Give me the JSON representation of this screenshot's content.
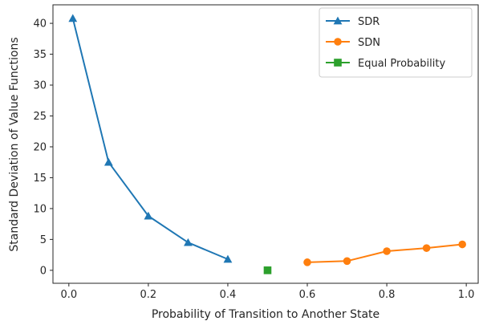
{
  "chart_data": {
    "type": "line",
    "xlabel": "Probability of Transition to Another State",
    "ylabel": "Standard Deviation of Value Functions",
    "xlim": [
      -0.04,
      1.03
    ],
    "ylim": [
      -2.1,
      43.0
    ],
    "xticks": [
      0.0,
      0.2,
      0.4,
      0.6,
      0.8,
      1.0
    ],
    "xtick_labels": [
      "0.0",
      "0.2",
      "0.4",
      "0.6",
      "0.8",
      "1.0"
    ],
    "yticks": [
      0,
      5,
      10,
      15,
      20,
      25,
      30,
      35,
      40
    ],
    "ytick_labels": [
      "0",
      "5",
      "10",
      "15",
      "20",
      "25",
      "30",
      "35",
      "40"
    ],
    "grid": false,
    "legend_position": "top-right",
    "series": [
      {
        "name": "SDR",
        "color": "#1f77b4",
        "marker": "triangle",
        "x": [
          0.01,
          0.1,
          0.2,
          0.3,
          0.4
        ],
        "y": [
          40.8,
          17.5,
          8.8,
          4.5,
          1.8
        ]
      },
      {
        "name": "SDN",
        "color": "#ff7f0e",
        "marker": "circle",
        "x": [
          0.6,
          0.7,
          0.8,
          0.9,
          0.99
        ],
        "y": [
          1.3,
          1.5,
          3.1,
          3.6,
          4.2
        ]
      },
      {
        "name": "Equal Probability",
        "color": "#2ca02c",
        "marker": "square",
        "x": [
          0.5
        ],
        "y": [
          0.0
        ]
      }
    ]
  }
}
